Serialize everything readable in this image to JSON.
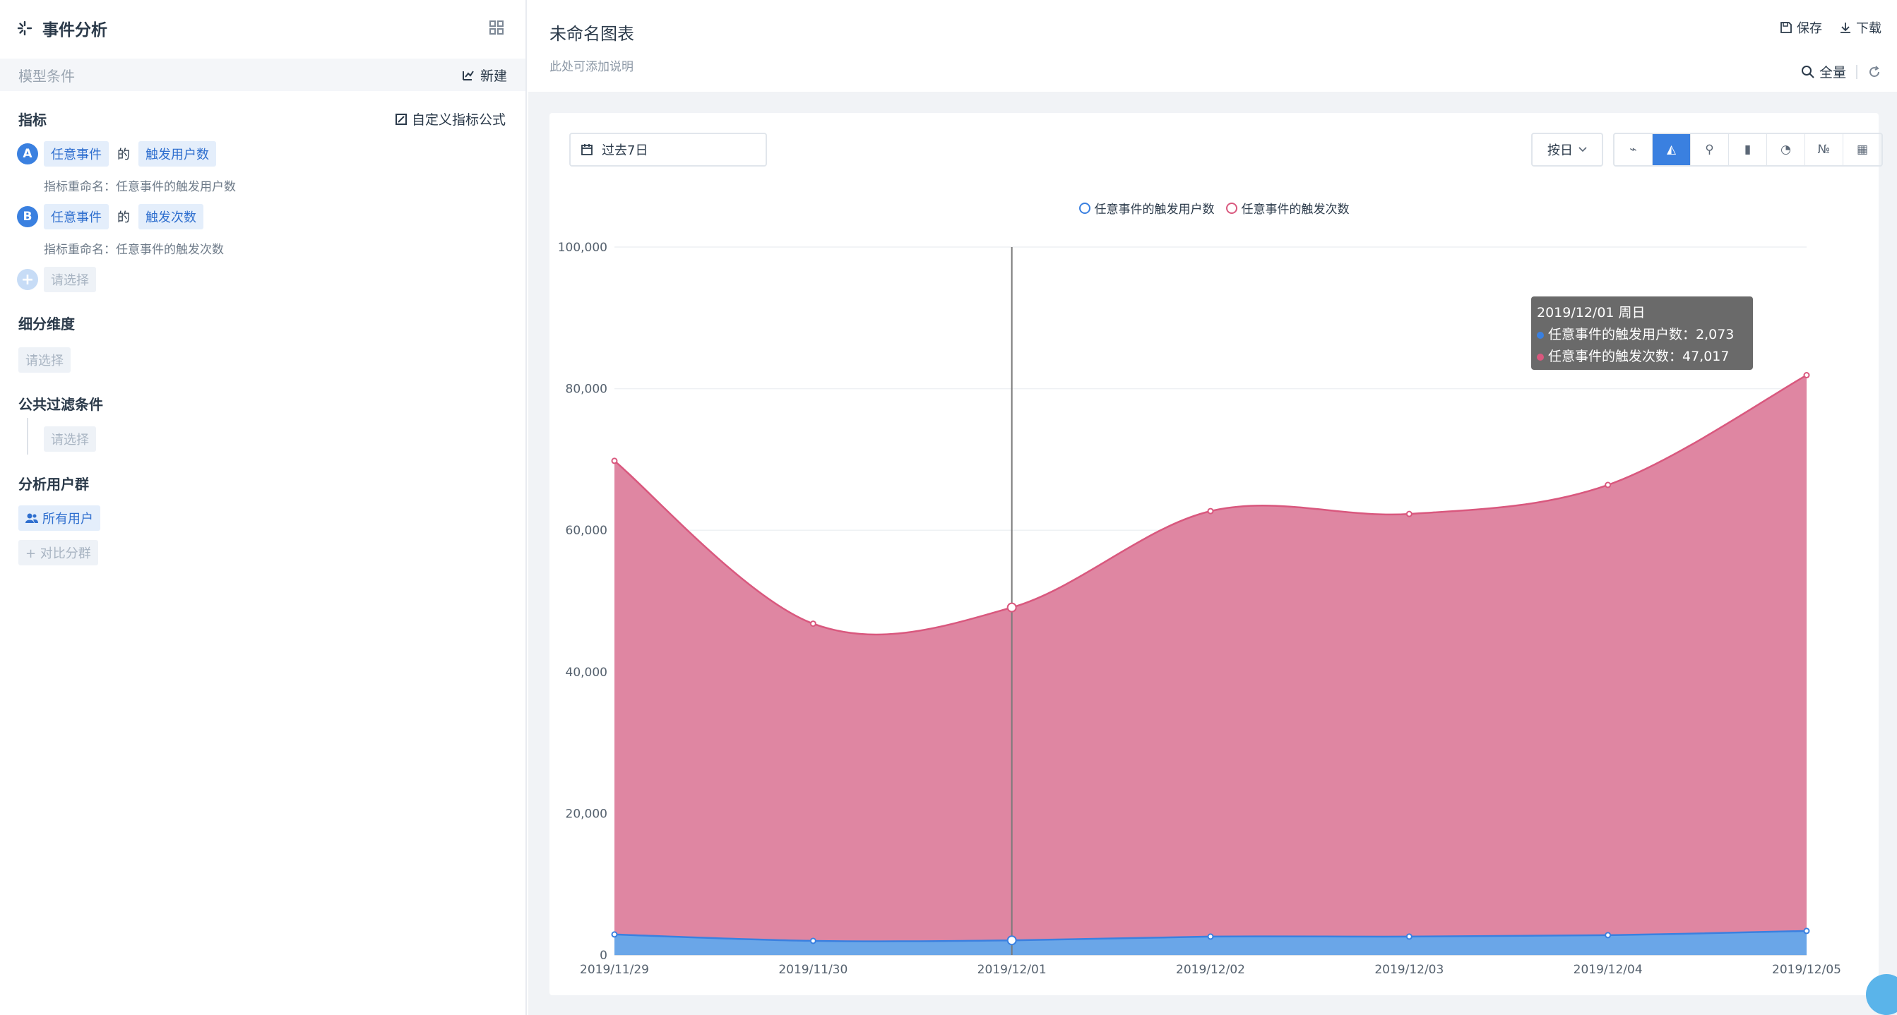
{
  "left": {
    "app_title": "事件分析",
    "model_label": "模型条件",
    "new_label": "新建",
    "metrics_title": "指标",
    "custom_formula": "自定义指标公式",
    "metrics": [
      {
        "badge": "A",
        "event": "任意事件",
        "de": "的",
        "measure": "触发用户数",
        "rename": "指标重命名：任意事件的触发用户数"
      },
      {
        "badge": "B",
        "event": "任意事件",
        "de": "的",
        "measure": "触发次数",
        "rename": "指标重命名：任意事件的触发次数"
      }
    ],
    "add_badge": "+",
    "add_placeholder": "请选择",
    "breakdown_title": "细分维度",
    "breakdown_placeholder": "请选择",
    "filter_title": "公共过滤条件",
    "filter_placeholder": "请选择",
    "group_title": "分析用户群",
    "group_all": "所有用户",
    "group_compare": "+ 对比分群"
  },
  "header": {
    "chart_title": "未命名图表",
    "chart_desc": "此处可添加说明",
    "save": "保存",
    "download": "下载",
    "scope": "全量"
  },
  "toolbar": {
    "date_range": "过去7日",
    "granularity": "按日",
    "chart_types": [
      {
        "icon": "line-chart-icon",
        "glyph": "⌁",
        "active": false
      },
      {
        "icon": "area-chart-icon",
        "glyph": "◭",
        "active": true
      },
      {
        "icon": "scatter-chart-icon",
        "glyph": "⚲",
        "active": false
      },
      {
        "icon": "bar-chart-icon",
        "glyph": "▮",
        "active": false
      },
      {
        "icon": "pie-chart-icon",
        "glyph": "◔",
        "active": false
      },
      {
        "icon": "number-icon",
        "glyph": "№",
        "active": false
      },
      {
        "icon": "table-icon",
        "glyph": "▦",
        "active": false
      }
    ]
  },
  "tooltip": {
    "title": "2019/12/01 周日",
    "line1": "任意事件的触发用户数：2,073",
    "line2": "任意事件的触发次数：47,017"
  },
  "chart_data": {
    "type": "area",
    "categories": [
      "2019/11/29",
      "2019/11/30",
      "2019/12/01",
      "2019/12/02",
      "2019/12/03",
      "2019/12/04",
      "2019/12/05"
    ],
    "series": [
      {
        "name": "任意事件的触发用户数",
        "color": "#5b9ee6",
        "values": [
          2900,
          2000,
          2073,
          2600,
          2600,
          2800,
          3400
        ]
      },
      {
        "name": "任意事件的触发次数",
        "color": "#d9587e",
        "values": [
          66900,
          44800,
          47017,
          60100,
          59700,
          63600,
          78500
        ]
      }
    ],
    "stacked": true,
    "ylim": [
      0,
      100000
    ],
    "yticks": [
      "0",
      "20,000",
      "40,000",
      "60,000",
      "80,000",
      "100,000"
    ],
    "grid": true,
    "legend_position": "top-center",
    "highlighted_category": "2019/12/01"
  }
}
